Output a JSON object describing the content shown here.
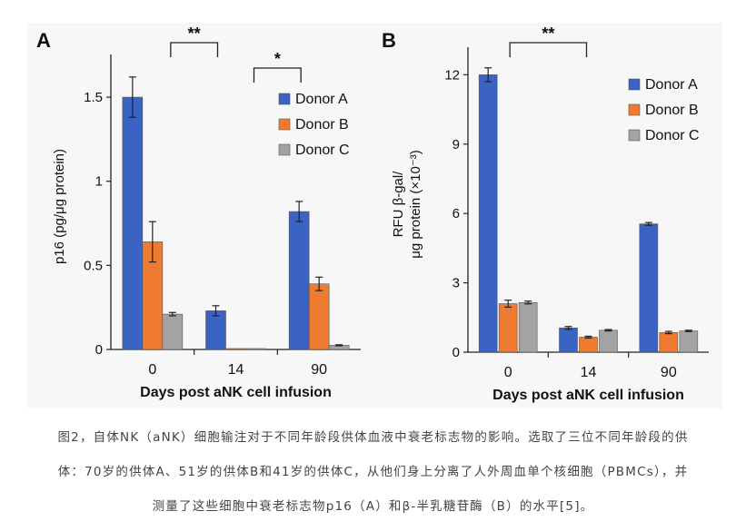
{
  "caption": {
    "line1": "图2，自体NK（aNK）细胞输注对于不同年龄段供体血液中衰老标志物的影响。选取了三位不同年龄段的供",
    "line2": "体：70岁的供体A、51岁的供体B和41岁的供体C，从他们身上分离了人外周血单个核细胞（PBMCs），并",
    "line3": "测量了这些细胞中衰老标志物p16（A）和β-半乳糖苷酶（B）的水平[5]。"
  },
  "colors": {
    "Donor A": "#3a63c4",
    "Donor B": "#ee7b30",
    "Donor C": "#a3a3a3",
    "axis": "#222222",
    "panel_bg": "#f7f7f7"
  },
  "chart_data": [
    {
      "type": "bar",
      "panel_label": "A",
      "categories": [
        "0",
        "14",
        "90"
      ],
      "series": [
        {
          "name": "Donor A",
          "values": [
            1.5,
            0.23,
            0.82
          ],
          "errors": [
            0.12,
            0.03,
            0.06
          ]
        },
        {
          "name": "Donor B",
          "values": [
            0.64,
            0.005,
            0.39
          ],
          "errors": [
            0.12,
            0.0,
            0.04
          ]
        },
        {
          "name": "Donor C",
          "values": [
            0.21,
            0.005,
            0.025
          ],
          "errors": [
            0.01,
            0.0,
            0.003
          ]
        }
      ],
      "xlabel": "Days post aNK cell infusion",
      "ylabel": "p16 (pg/μg protein)",
      "ylim": [
        0,
        1.7
      ],
      "yticks": [
        0,
        0.5,
        1,
        1.5
      ],
      "ytick_labels": [
        "0",
        "0.5",
        "1",
        "1.5"
      ],
      "legend": "top-right",
      "significance": [
        {
          "from": "0",
          "to": "14",
          "label": "**"
        },
        {
          "from": "14",
          "to": "90",
          "label": "*"
        }
      ]
    },
    {
      "type": "bar",
      "panel_label": "B",
      "categories": [
        "0",
        "14",
        "90"
      ],
      "series": [
        {
          "name": "Donor A",
          "values": [
            12.0,
            1.05,
            5.55
          ],
          "errors": [
            0.3,
            0.06,
            0.06
          ]
        },
        {
          "name": "Donor B",
          "values": [
            2.1,
            0.65,
            0.85
          ],
          "errors": [
            0.15,
            0.04,
            0.05
          ]
        },
        {
          "name": "Donor C",
          "values": [
            2.15,
            0.95,
            0.92
          ],
          "errors": [
            0.06,
            0.03,
            0.03
          ]
        }
      ],
      "xlabel": "Days post aNK cell infusion",
      "ylabel_line1": "RFU β-gal/",
      "ylabel_line2": "μg protein (×10⁻³)",
      "ylim": [
        0,
        12.8
      ],
      "yticks": [
        0,
        3,
        6,
        9,
        12
      ],
      "ytick_labels": [
        "0",
        "3",
        "6",
        "9",
        "12"
      ],
      "legend": "top-right",
      "significance": [
        {
          "from": "0",
          "to": "14",
          "label": "**"
        }
      ]
    }
  ]
}
